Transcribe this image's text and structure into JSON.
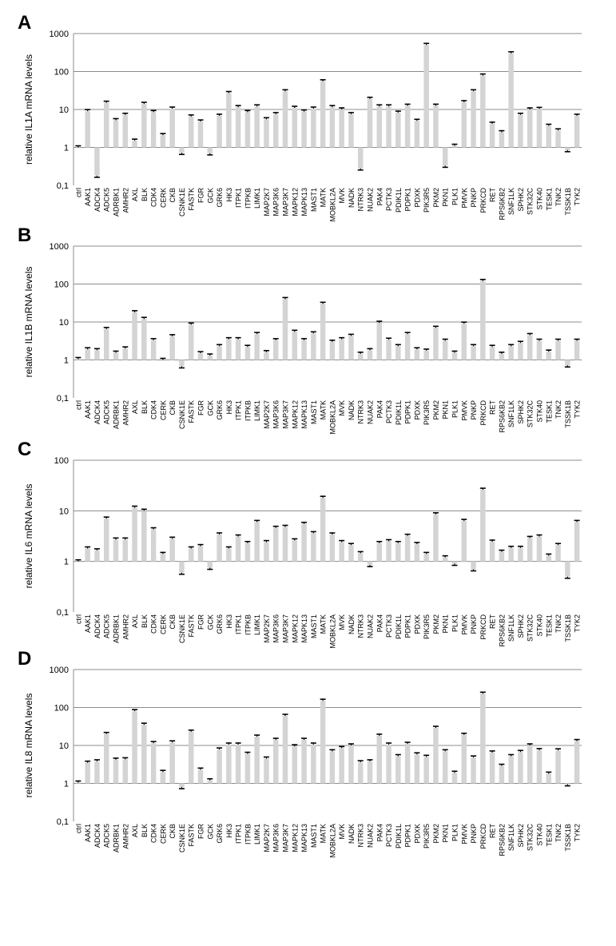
{
  "chart_data": [
    {
      "panel": "A",
      "type": "bar",
      "ylabel": "relative IL1A mRNA levels",
      "yscale": "log",
      "ylim": [
        0.1,
        1000
      ],
      "yticks": [
        "0,1",
        "1",
        "10",
        "100",
        "1000"
      ],
      "grid": true,
      "bar_color": "#d4d4d4",
      "categories": [
        "ctrl",
        "AAK1",
        "ADCK4",
        "ADCK5",
        "ADRBK1",
        "AMHR2",
        "AXL",
        "BLK",
        "CDK4",
        "CERK",
        "CKB",
        "CSNK1E",
        "FASTK",
        "FGR",
        "GCK",
        "GRK6",
        "HK3",
        "ITPK1",
        "ITPKB",
        "LIMK1",
        "MAP2K7",
        "MAP3K6",
        "MAP3K7",
        "MAPK12",
        "MAPK13",
        "MAST1",
        "MATK",
        "MOBKL2A",
        "MVK",
        "NADK",
        "NTRK3",
        "NUAK2",
        "PAK4",
        "PCTK3",
        "PDIK1L",
        "PDPK1",
        "PDXK",
        "PIK3R5",
        "PKM2",
        "PKN1",
        "PLK1",
        "PMVK",
        "PNKP",
        "PRKCD",
        "RET",
        "RPS6KB2",
        "SNF1LK",
        "SPHK2",
        "STK32C",
        "STK40",
        "TESK1",
        "TNK2",
        "TSSK1B",
        "TYK2"
      ],
      "values": [
        1.0,
        9.0,
        0.18,
        15,
        5.2,
        7.2,
        1.5,
        14,
        8.5,
        2.1,
        10.5,
        0.72,
        6.5,
        4.8,
        0.7,
        6.8,
        27,
        11.5,
        8.5,
        12,
        5.5,
        7.5,
        30,
        11,
        8.8,
        10.5,
        55,
        11.5,
        10,
        7.5,
        0.28,
        19,
        12,
        12,
        8.2,
        12.5,
        5,
        500,
        12.5,
        0.33,
        1.1,
        15.5,
        30,
        78,
        4.2,
        2.5,
        300,
        7.2,
        10,
        10.3,
        3.7,
        2.8,
        0.85,
        6.8
      ]
    },
    {
      "panel": "B",
      "type": "bar",
      "ylabel": "relative IL1B mRNA  levels",
      "yscale": "log",
      "ylim": [
        0.1,
        1000
      ],
      "yticks": [
        "0,1",
        "1",
        "10",
        "100",
        "1000"
      ],
      "grid": true,
      "bar_color": "#d4d4d4",
      "categories": [
        "ctrl",
        "AAK1",
        "ADCK4",
        "ADCK5",
        "ADRBK1",
        "AMHR2",
        "AXL",
        "BLK",
        "CDK4",
        "CERK",
        "CKB",
        "CSNK1E",
        "FASTK",
        "FGR",
        "GCK",
        "GRK6",
        "HK3",
        "ITPK1",
        "ITPKB",
        "LIMK1",
        "MAP2K7",
        "MAP3K6",
        "MAP3K7",
        "MAPK12",
        "MAPK13",
        "MAST1",
        "MATK",
        "MOBKL2A",
        "MVK",
        "NADK",
        "NTRK3",
        "NUAK2",
        "PAK4",
        "PCTK3",
        "PDIK1L",
        "PDPK1",
        "PDXK",
        "PIK3R5",
        "PKM2",
        "PKN1",
        "PLK1",
        "PMVK",
        "PNKP",
        "PRKCD",
        "RET",
        "RPS6KB2",
        "SNF1LK",
        "SPHK2",
        "STK32C",
        "STK40",
        "TESK1",
        "TNK2",
        "TSSK1B",
        "TYK2"
      ],
      "values": [
        1.05,
        1.9,
        1.8,
        6.5,
        1.55,
        2.0,
        18,
        12,
        3.3,
        1.0,
        4.2,
        0.68,
        8.5,
        1.5,
        1.3,
        2.3,
        3.5,
        3.5,
        2.2,
        4.8,
        1.6,
        3.3,
        40,
        5.5,
        3.3,
        5.0,
        30,
        3.0,
        3.5,
        4.3,
        1.45,
        1.8,
        9.5,
        3.4,
        2.3,
        4.8,
        1.9,
        1.75,
        7.0,
        3.2,
        1.55,
        9.0,
        2.3,
        120,
        2.2,
        1.45,
        2.3,
        2.8,
        4.5,
        3.2,
        1.65,
        3.2,
        0.72,
        3.2
      ]
    },
    {
      "panel": "C",
      "type": "bar",
      "ylabel": "relative IL6 mRNA  levels",
      "yscale": "log",
      "ylim": [
        0.1,
        100
      ],
      "yticks": [
        "0,1",
        "1",
        "10",
        "100"
      ],
      "grid": true,
      "bar_color": "#d4d4d4",
      "categories": [
        "ctrl",
        "AAK1",
        "ADCK4",
        "ADCK5",
        "ADRBK1",
        "AMHR2",
        "AXL",
        "BLK",
        "CDK4",
        "CERK",
        "CKB",
        "CSNK1E",
        "FASTK",
        "FGR",
        "GCK",
        "GRK6",
        "HK3",
        "ITPK1",
        "ITPKB",
        "LIMK1",
        "MAP2K7",
        "MAP3K6",
        "MAP3K7",
        "MAPK12",
        "MAPK13",
        "MAST1",
        "MATK",
        "MOBKL2A",
        "MVK",
        "NADK",
        "NTRK3",
        "NUAK2",
        "PAK4",
        "PCTK3",
        "PDIK1L",
        "PDPK1",
        "PDXK",
        "PIK3R5",
        "PKM2",
        "PKN1",
        "PLK1",
        "PMVK",
        "PNKP",
        "PRKCD",
        "RET",
        "RPS6KB2",
        "SNF1LK",
        "SPHK2",
        "STK32C",
        "STK40",
        "TESK1",
        "TNK2",
        "TSSK1B",
        "TYK2"
      ],
      "values": [
        1.0,
        1.8,
        1.65,
        7.0,
        2.7,
        2.7,
        11.5,
        10,
        4.3,
        1.4,
        2.8,
        0.6,
        1.8,
        2.0,
        0.75,
        3.4,
        1.8,
        3.1,
        2.3,
        6.0,
        2.4,
        4.6,
        4.8,
        2.6,
        5.5,
        3.6,
        18,
        3.4,
        2.4,
        2.1,
        1.45,
        0.85,
        2.3,
        2.5,
        2.3,
        3.2,
        2.2,
        1.4,
        8.5,
        1.2,
        0.9,
        6.3,
        0.7,
        26,
        2.45,
        1.55,
        1.85,
        1.85,
        2.9,
        3.1,
        1.3,
        2.1,
        0.5,
        6.0
      ]
    },
    {
      "panel": "D",
      "type": "bar",
      "ylabel": "relative IL8 mRNA  levels",
      "yscale": "log",
      "ylim": [
        0.1,
        1000
      ],
      "yticks": [
        "0,1",
        "1",
        "10",
        "100",
        "1000"
      ],
      "grid": true,
      "bar_color": "#d4d4d4",
      "categories": [
        "ctrl",
        "AAK1",
        "ADCK4",
        "ADCK5",
        "ADRBK1",
        "AMHR2",
        "AXL",
        "BLK",
        "CDK4",
        "CERK",
        "CKB",
        "CSNK1E",
        "FASTK",
        "FGR",
        "GCK",
        "GRK6",
        "HK3",
        "ITPK1",
        "ITPKB",
        "LIMK1",
        "MAP2K7",
        "MAP3K6",
        "MAP3K7",
        "MAPK12",
        "MAPK13",
        "MAST1",
        "MATK",
        "MOBKL2A",
        "MVK",
        "NADK",
        "NTRK3",
        "NUAK2",
        "PAK4",
        "PCTK3",
        "PDIK1L",
        "PDPK1",
        "PDXK",
        "PIK3R5",
        "PKM2",
        "PKN1",
        "PLK1",
        "PMVK",
        "PNKP",
        "PRKCD",
        "RET",
        "RPS6KB2",
        "SNF1LK",
        "SPHK2",
        "STK32C",
        "STK40",
        "TESK1",
        "TNK2",
        "TSSK1B",
        "TYK2"
      ],
      "values": [
        1.05,
        3.5,
        3.8,
        20,
        4.2,
        4.3,
        80,
        35,
        11.5,
        2.0,
        12,
        0.8,
        23,
        2.3,
        1.2,
        7.8,
        10.5,
        10.5,
        6.0,
        17,
        4.5,
        14,
        60,
        9.5,
        14,
        10.5,
        150,
        7.0,
        8.5,
        10,
        3.6,
        3.8,
        18,
        10.5,
        5.2,
        11,
        5.8,
        5.0,
        29,
        7.0,
        1.9,
        19,
        4.8,
        230,
        6.5,
        2.9,
        5.2,
        6.7,
        10,
        7.5,
        1.8,
        7.4,
        0.95,
        13
      ]
    }
  ]
}
